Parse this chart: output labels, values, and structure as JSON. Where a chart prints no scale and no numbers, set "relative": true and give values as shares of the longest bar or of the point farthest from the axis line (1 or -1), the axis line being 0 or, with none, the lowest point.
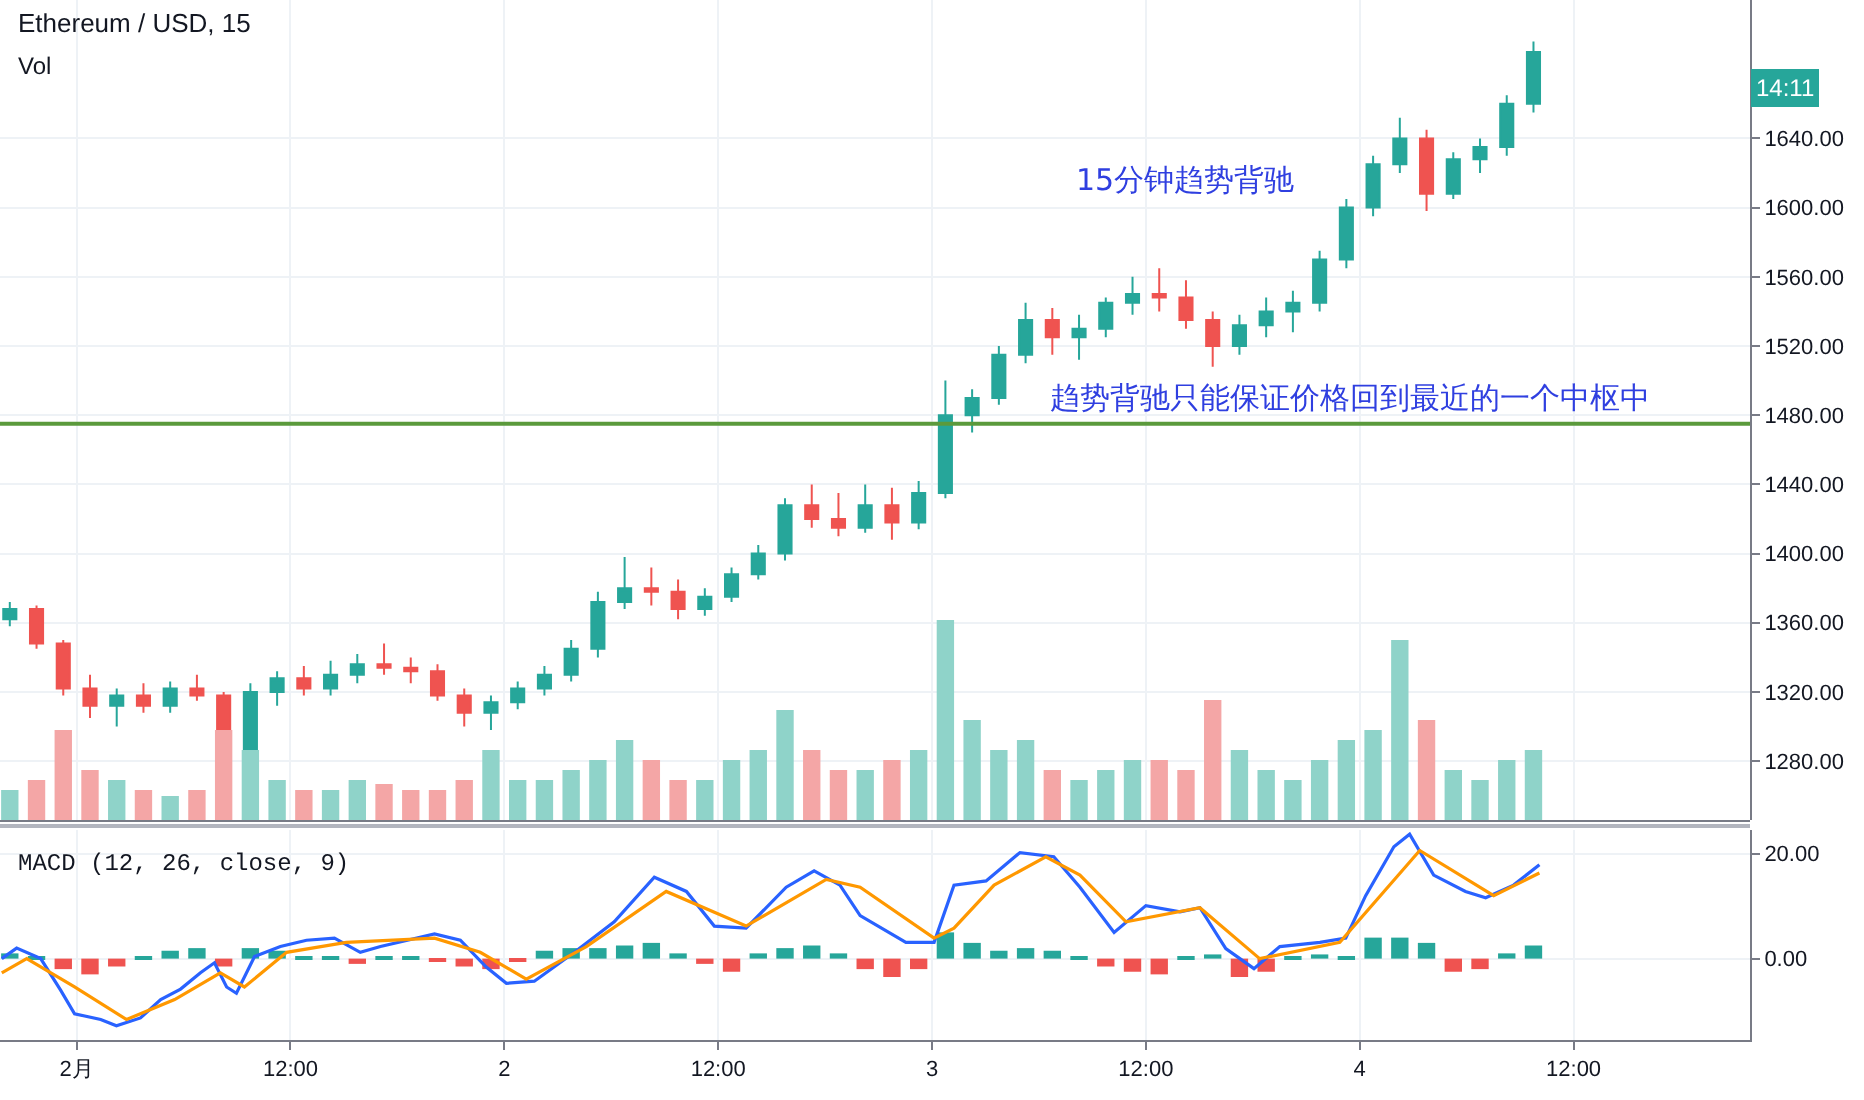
{
  "chart_data": [
    {
      "type": "candlestick",
      "title": "Ethereum / USD, 15",
      "x": [
        "--01-31T20:15",
        "--01-31T21:45",
        "--01-31T23:15",
        "--02-01T00:45",
        "--02-01T02:15",
        "--02-01T03:45",
        "--02-01T05:15",
        "--02-01T06:45",
        "--02-01T08:15",
        "--02-01T09:45",
        "--02-01T11:15",
        "--02-01T12:45",
        "--02-01T14:15",
        "--02-01T15:45",
        "--02-01T17:15",
        "--02-01T18:45",
        "--02-01T20:15",
        "--02-01T21:45",
        "--02-01T23:15",
        "--02-02T00:45",
        "--02-02T02:15",
        "--02-02T03:45",
        "--02-02T05:15",
        "--02-02T06:45",
        "--02-02T08:15",
        "--02-02T09:45",
        "--02-02T11:15",
        "--02-02T12:45",
        "--02-02T14:15",
        "--02-02T15:45",
        "--02-02T17:15",
        "--02-02T18:45",
        "--02-02T20:15",
        "--02-02T21:45",
        "--02-02T23:15",
        "--02-03T00:45",
        "--02-03T02:15",
        "--02-03T03:45",
        "--02-03T05:15",
        "--02-03T06:45",
        "--02-03T08:15",
        "--02-03T09:45",
        "--02-03T11:15",
        "--02-03T12:45",
        "--02-03T14:15",
        "--02-03T15:45",
        "--02-03T17:15",
        "--02-03T18:45",
        "--02-03T20:15",
        "--02-03T21:45",
        "--02-03T23:15",
        "--02-04T00:45",
        "--02-04T02:15",
        "--02-04T03:45",
        "--02-04T05:15",
        "--02-04T06:45",
        "--02-04T08:15",
        "--02-04T09:45"
      ],
      "ohlc": [
        [
          1362,
          1372,
          1358,
          1368
        ],
        [
          1368,
          1370,
          1345,
          1348
        ],
        [
          1348,
          1350,
          1318,
          1322
        ],
        [
          1322,
          1330,
          1305,
          1312
        ],
        [
          1312,
          1322,
          1300,
          1318
        ],
        [
          1318,
          1325,
          1308,
          1312
        ],
        [
          1312,
          1326,
          1308,
          1322
        ],
        [
          1322,
          1330,
          1315,
          1318
        ],
        [
          1318,
          1320,
          1272,
          1285
        ],
        [
          1285,
          1325,
          1282,
          1320
        ],
        [
          1320,
          1332,
          1312,
          1328
        ],
        [
          1328,
          1335,
          1318,
          1322
        ],
        [
          1322,
          1338,
          1318,
          1330
        ],
        [
          1330,
          1342,
          1325,
          1336
        ],
        [
          1336,
          1348,
          1330,
          1334
        ],
        [
          1334,
          1340,
          1325,
          1332
        ],
        [
          1332,
          1336,
          1315,
          1318
        ],
        [
          1318,
          1322,
          1300,
          1308
        ],
        [
          1308,
          1318,
          1298,
          1314
        ],
        [
          1314,
          1326,
          1310,
          1322
        ],
        [
          1322,
          1335,
          1318,
          1330
        ],
        [
          1330,
          1350,
          1326,
          1345
        ],
        [
          1345,
          1378,
          1340,
          1372
        ],
        [
          1372,
          1398,
          1368,
          1380
        ],
        [
          1380,
          1392,
          1370,
          1378
        ],
        [
          1378,
          1385,
          1362,
          1368
        ],
        [
          1368,
          1380,
          1364,
          1375
        ],
        [
          1375,
          1392,
          1372,
          1388
        ],
        [
          1388,
          1405,
          1385,
          1400
        ],
        [
          1400,
          1432,
          1396,
          1428
        ],
        [
          1428,
          1440,
          1415,
          1420
        ],
        [
          1420,
          1435,
          1410,
          1415
        ],
        [
          1415,
          1440,
          1412,
          1428
        ],
        [
          1428,
          1438,
          1408,
          1418
        ],
        [
          1418,
          1442,
          1414,
          1435
        ],
        [
          1435,
          1500,
          1432,
          1480
        ],
        [
          1480,
          1495,
          1470,
          1490
        ],
        [
          1490,
          1520,
          1486,
          1515
        ],
        [
          1515,
          1545,
          1510,
          1535
        ],
        [
          1535,
          1542,
          1515,
          1525
        ],
        [
          1525,
          1538,
          1512,
          1530
        ],
        [
          1530,
          1548,
          1525,
          1545
        ],
        [
          1545,
          1560,
          1538,
          1550
        ],
        [
          1550,
          1565,
          1540,
          1548
        ],
        [
          1548,
          1558,
          1530,
          1535
        ],
        [
          1535,
          1540,
          1508,
          1520
        ],
        [
          1520,
          1538,
          1515,
          1532
        ],
        [
          1532,
          1548,
          1525,
          1540
        ],
        [
          1540,
          1552,
          1528,
          1545
        ],
        [
          1545,
          1575,
          1540,
          1570
        ],
        [
          1570,
          1605,
          1565,
          1600
        ],
        [
          1600,
          1630,
          1595,
          1625
        ],
        [
          1625,
          1652,
          1620,
          1640
        ],
        [
          1640,
          1645,
          1598,
          1608
        ],
        [
          1608,
          1632,
          1605,
          1628
        ],
        [
          1628,
          1640,
          1620,
          1635
        ],
        [
          1635,
          1665,
          1630,
          1660
        ],
        [
          1660,
          1696,
          1655,
          1690
        ]
      ],
      "xlim": [
        "--01-31T19:42",
        "--02-04T21:54"
      ],
      "xticks": [
        {
          "value": "--02-01",
          "label": "2月"
        },
        {
          "value": "--02-01T12:00",
          "label": "12:00"
        },
        {
          "value": "--02-02",
          "label": "2"
        },
        {
          "value": "--02-02T12:00",
          "label": "12:00"
        },
        {
          "value": "--02-03",
          "label": "3"
        },
        {
          "value": "--02-03T12:00",
          "label": "12:00"
        },
        {
          "value": "--02-04",
          "label": "4"
        },
        {
          "value": "--02-04T12:00",
          "label": "12:00"
        }
      ],
      "ylim": [
        1246,
        1720
      ],
      "yticks": [
        {
          "value": 1280,
          "label": "1280.00"
        },
        {
          "value": 1320,
          "label": "1320.00"
        },
        {
          "value": 1360,
          "label": "1360.00"
        },
        {
          "value": 1400,
          "label": "1400.00"
        },
        {
          "value": 1440,
          "label": "1440.00"
        },
        {
          "value": 1480,
          "label": "1480.00"
        },
        {
          "value": 1520,
          "label": "1520.00"
        },
        {
          "value": 1560,
          "label": "1560.00"
        },
        {
          "value": 1600,
          "label": "1600.00"
        },
        {
          "value": 1640,
          "label": "1640.00"
        }
      ],
      "ref_lines": [
        {
          "axis": "y",
          "value": 1475,
          "color": "#5b9a3c"
        }
      ],
      "annotations": [
        "15分钟趋势背驰",
        "趋势背驰只能保证价格回到最近的一个中枢中",
        "14:11"
      ],
      "grid": true,
      "legend": false,
      "tick_labels": "y"
    },
    {
      "type": "bar",
      "relative": true,
      "annotations": [
        "Vol"
      ],
      "x": [
        "--01-31T20:15",
        "--01-31T21:45",
        "--01-31T23:15",
        "--02-01T00:45",
        "--02-01T02:15",
        "--02-01T03:45",
        "--02-01T05:15",
        "--02-01T06:45",
        "--02-01T08:15",
        "--02-01T09:45",
        "--02-01T11:15",
        "--02-01T12:45",
        "--02-01T14:15",
        "--02-01T15:45",
        "--02-01T17:15",
        "--02-01T18:45",
        "--02-01T20:15",
        "--02-01T21:45",
        "--02-01T23:15",
        "--02-02T00:45",
        "--02-02T02:15",
        "--02-02T03:45",
        "--02-02T05:15",
        "--02-02T06:45",
        "--02-02T08:15",
        "--02-02T09:45",
        "--02-02T11:15",
        "--02-02T12:45",
        "--02-02T14:15",
        "--02-02T15:45",
        "--02-02T17:15",
        "--02-02T18:45",
        "--02-02T20:15",
        "--02-02T21:45",
        "--02-02T23:15",
        "--02-03T00:45",
        "--02-03T02:15",
        "--02-03T03:45",
        "--02-03T05:15",
        "--02-03T06:45",
        "--02-03T08:15",
        "--02-03T09:45",
        "--02-03T11:15",
        "--02-03T12:45",
        "--02-03T14:15",
        "--02-03T15:45",
        "--02-03T17:15",
        "--02-03T18:45",
        "--02-03T20:15",
        "--02-03T21:45",
        "--02-03T23:15",
        "--02-04T00:45",
        "--02-04T02:15",
        "--02-04T03:45",
        "--02-04T05:15",
        "--02-04T06:45",
        "--02-04T08:15",
        "--02-04T09:45"
      ],
      "values": [
        0.15,
        0.2,
        0.45,
        0.25,
        0.2,
        0.15,
        0.12,
        0.15,
        0.45,
        0.35,
        0.2,
        0.15,
        0.15,
        0.2,
        0.18,
        0.15,
        0.15,
        0.2,
        0.35,
        0.2,
        0.2,
        0.25,
        0.3,
        0.4,
        0.3,
        0.2,
        0.2,
        0.3,
        0.35,
        0.55,
        0.35,
        0.25,
        0.25,
        0.3,
        0.35,
        1.0,
        0.5,
        0.35,
        0.4,
        0.25,
        0.2,
        0.25,
        0.3,
        0.3,
        0.25,
        0.6,
        0.35,
        0.25,
        0.2,
        0.3,
        0.4,
        0.45,
        0.9,
        0.5,
        0.25,
        0.2,
        0.3,
        0.35
      ],
      "colors": [
        "#8fd3c9",
        "#f4a6a6",
        "#f4a6a6",
        "#f4a6a6",
        "#8fd3c9",
        "#f4a6a6",
        "#8fd3c9",
        "#f4a6a6",
        "#f4a6a6",
        "#8fd3c9",
        "#8fd3c9",
        "#f4a6a6",
        "#8fd3c9",
        "#8fd3c9",
        "#f4a6a6",
        "#f4a6a6",
        "#f4a6a6",
        "#f4a6a6",
        "#8fd3c9",
        "#8fd3c9",
        "#8fd3c9",
        "#8fd3c9",
        "#8fd3c9",
        "#8fd3c9",
        "#f4a6a6",
        "#f4a6a6",
        "#8fd3c9",
        "#8fd3c9",
        "#8fd3c9",
        "#8fd3c9",
        "#f4a6a6",
        "#f4a6a6",
        "#8fd3c9",
        "#f4a6a6",
        "#8fd3c9",
        "#8fd3c9",
        "#8fd3c9",
        "#8fd3c9",
        "#8fd3c9",
        "#f4a6a6",
        "#8fd3c9",
        "#8fd3c9",
        "#8fd3c9",
        "#f4a6a6",
        "#f4a6a6",
        "#f4a6a6",
        "#8fd3c9",
        "#8fd3c9",
        "#8fd3c9",
        "#8fd3c9",
        "#8fd3c9",
        "#8fd3c9",
        "#8fd3c9",
        "#f4a6a6",
        "#8fd3c9",
        "#8fd3c9",
        "#8fd3c9",
        "#8fd3c9"
      ],
      "xlim": [
        "--01-31T19:42",
        "--02-04T21:54"
      ],
      "tick_labels": false
    },
    {
      "type": "line",
      "annotations": [
        "MACD (12, 26, close, 9)"
      ],
      "series": [
        {
          "type": "bar",
          "x": [
            "--01-31T20:15",
            "--01-31T21:45",
            "--01-31T23:15",
            "--02-01T00:45",
            "--02-01T02:15",
            "--02-01T03:45",
            "--02-01T05:15",
            "--02-01T06:45",
            "--02-01T08:15",
            "--02-01T09:45",
            "--02-01T11:15",
            "--02-01T12:45",
            "--02-01T14:15",
            "--02-01T15:45",
            "--02-01T17:15",
            "--02-01T18:45",
            "--02-01T20:15",
            "--02-01T21:45",
            "--02-01T23:15",
            "--02-02T00:45",
            "--02-02T02:15",
            "--02-02T03:45",
            "--02-02T05:15",
            "--02-02T06:45",
            "--02-02T08:15",
            "--02-02T09:45",
            "--02-02T11:15",
            "--02-02T12:45",
            "--02-02T14:15",
            "--02-02T15:45",
            "--02-02T17:15",
            "--02-02T18:45",
            "--02-02T20:15",
            "--02-02T21:45",
            "--02-02T23:15",
            "--02-03T00:45",
            "--02-03T02:15",
            "--02-03T03:45",
            "--02-03T05:15",
            "--02-03T06:45",
            "--02-03T08:15",
            "--02-03T09:45",
            "--02-03T11:15",
            "--02-03T12:45",
            "--02-03T14:15",
            "--02-03T15:45",
            "--02-03T17:15",
            "--02-03T18:45",
            "--02-03T20:15",
            "--02-03T21:45",
            "--02-03T23:15",
            "--02-04T00:45",
            "--02-04T02:15",
            "--02-04T03:45",
            "--02-04T05:15",
            "--02-04T06:45",
            "--02-04T08:15",
            "--02-04T09:45"
          ],
          "values": [
            1,
            0.5,
            -2,
            -3,
            -1.5,
            0.3,
            1.5,
            2,
            -1.5,
            2,
            1.5,
            0.5,
            0.5,
            -1,
            0.5,
            0.3,
            -0.5,
            -1.5,
            -2,
            -0.5,
            1.5,
            2,
            2,
            2.5,
            3,
            1,
            -1,
            -2.5,
            1,
            2,
            2.5,
            1,
            -2,
            -3.5,
            -2,
            5,
            3,
            1.5,
            2,
            1.5,
            0.3,
            -1.5,
            -2.5,
            -3,
            0.5,
            0.8,
            -3.5,
            -2.5,
            0.5,
            0.8,
            0.3,
            4,
            4,
            3,
            -2.5,
            -2,
            1,
            2.5
          ],
          "colors": [
            "#26a69a",
            "#26a69a",
            "#ef5350",
            "#ef5350",
            "#ef5350",
            "#26a69a",
            "#26a69a",
            "#26a69a",
            "#ef5350",
            "#26a69a",
            "#26a69a",
            "#26a69a",
            "#26a69a",
            "#ef5350",
            "#26a69a",
            "#26a69a",
            "#ef5350",
            "#ef5350",
            "#ef5350",
            "#ef5350",
            "#26a69a",
            "#26a69a",
            "#26a69a",
            "#26a69a",
            "#26a69a",
            "#26a69a",
            "#ef5350",
            "#ef5350",
            "#26a69a",
            "#26a69a",
            "#26a69a",
            "#26a69a",
            "#ef5350",
            "#ef5350",
            "#ef5350",
            "#26a69a",
            "#26a69a",
            "#26a69a",
            "#26a69a",
            "#26a69a",
            "#26a69a",
            "#ef5350",
            "#ef5350",
            "#ef5350",
            "#26a69a",
            "#26a69a",
            "#ef5350",
            "#ef5350",
            "#26a69a",
            "#26a69a",
            "#26a69a",
            "#26a69a",
            "#26a69a",
            "#26a69a",
            "#ef5350",
            "#ef5350",
            "#26a69a",
            "#26a69a"
          ]
        },
        {
          "color": "#2962ff",
          "x": [
            "--01-31T19:48",
            "--01-31T20:38",
            "--01-31T21:59",
            "--01-31T23:06",
            "--01-31T23:53",
            "--02-01T01:21",
            "--02-01T02:14",
            "--02-01T03:35",
            "--02-01T04:43",
            "--02-01T05:50",
            "--02-01T06:57",
            "--02-01T07:44",
            "--02-01T08:25",
            "--02-01T08:58",
            "--02-01T09:59",
            "--02-01T11:26",
            "--02-01T12:54",
            "--02-01T14:28",
            "--02-01T15:55",
            "--02-01T17:03",
            "--02-01T20:05",
            "--02-01T21:32",
            "--02-01T22:59",
            "--02-02T00:07",
            "--02-02T01:41",
            "--02-02T03:56",
            "--02-02T06:10",
            "--02-02T08:25",
            "--02-02T10:13",
            "--02-02T11:47",
            "--02-02T13:34",
            "--02-02T15:49",
            "--02-02T17:23",
            "--02-02T18:50",
            "--02-02T19:58",
            "--02-02T22:32",
            "--02-03T00:07",
            "--02-03T01:14",
            "--02-03T03:02",
            "--02-03T04:56",
            "--02-03T06:50",
            "--02-03T08:18",
            "--02-03T10:13",
            "--02-03T12:00",
            "--02-03T13:55",
            "--02-03T15:02",
            "--02-03T16:29",
            "--02-03T18:04",
            "--02-03T19:31",
            "--02-03T21:46",
            "--02-03T23:13",
            "--02-04T00:20",
            "--02-04T01:55",
            "--02-04T02:48",
            "--02-04T04:09",
            "--02-04T05:56",
            "--02-04T07:04",
            "--02-04T08:38",
            "--02-04T10:05"
          ],
          "values": [
            0,
            2,
            0,
            -6,
            -10.5,
            -11.6,
            -12.8,
            -11.3,
            -7.8,
            -5.8,
            -2.7,
            -0.8,
            -5.4,
            -6.6,
            0.4,
            2.3,
            3.5,
            3.9,
            1.2,
            2.3,
            4.7,
            3.5,
            -1.6,
            -4.7,
            -4.3,
            1.2,
            7,
            15.5,
            12.8,
            6.2,
            5.8,
            13.6,
            16.7,
            14,
            8.2,
            3.1,
            3.1,
            14,
            14.8,
            20.2,
            19.4,
            13.6,
            5,
            10.1,
            8.9,
            9.7,
            1.9,
            -1.9,
            2.3,
            3.1,
            3.9,
            12,
            21.3,
            23.7,
            15.9,
            12.8,
            11.6,
            14,
            17.9
          ]
        },
        {
          "color": "#ff9800",
          "x": [
            "--01-31T19:48",
            "--01-31T21:12",
            "--01-31T23:53",
            "--02-01T02:48",
            "--02-01T05:30",
            "--02-01T08:04",
            "--02-01T09:25",
            "--02-01T11:47",
            "--02-01T15:08",
            "--02-01T20:05",
            "--02-01T22:39",
            "--02-02T01:14",
            "--02-02T04:36",
            "--02-02T09:05",
            "--02-02T13:34",
            "--02-02T18:04",
            "--02-02T19:58",
            "--02-03T00:07",
            "--02-03T01:14",
            "--02-03T03:29",
            "--02-03T06:23",
            "--02-03T08:18",
            "--02-03T10:53",
            "--02-03T15:02",
            "--02-03T18:23",
            "--02-03T22:53",
            "--02-04T03:22",
            "--02-04T07:31",
            "--02-04T10:05"
          ],
          "values": [
            -2.7,
            0,
            -5.4,
            -11.6,
            -7.8,
            -2.7,
            -5.4,
            1.2,
            3.1,
            3.9,
            1.2,
            -3.9,
            2.3,
            12.8,
            6.2,
            15.1,
            13.6,
            3.9,
            5.8,
            14,
            19.4,
            15.9,
            7,
            9.7,
            0,
            3.1,
            20.6,
            12,
            16.3
          ]
        }
      ],
      "xlim": [
        "--01-31T19:42",
        "--02-04T21:54"
      ],
      "xticks": [
        {
          "value": "--02-01",
          "label": "2月"
        },
        {
          "value": "--02-01T12:00",
          "label": "12:00"
        },
        {
          "value": "--02-02",
          "label": "2"
        },
        {
          "value": "--02-02T12:00",
          "label": "12:00"
        },
        {
          "value": "--02-03",
          "label": "3"
        },
        {
          "value": "--02-03T12:00",
          "label": "12:00"
        },
        {
          "value": "--02-04",
          "label": "4"
        },
        {
          "value": "--02-04T12:00",
          "label": "12:00"
        }
      ],
      "ylim": [
        -15.5,
        24.5
      ],
      "yticks": [
        {
          "value": 0,
          "label": "0.00"
        },
        {
          "value": 20,
          "label": "20.00"
        }
      ],
      "grid": true,
      "legend": false
    }
  ]
}
